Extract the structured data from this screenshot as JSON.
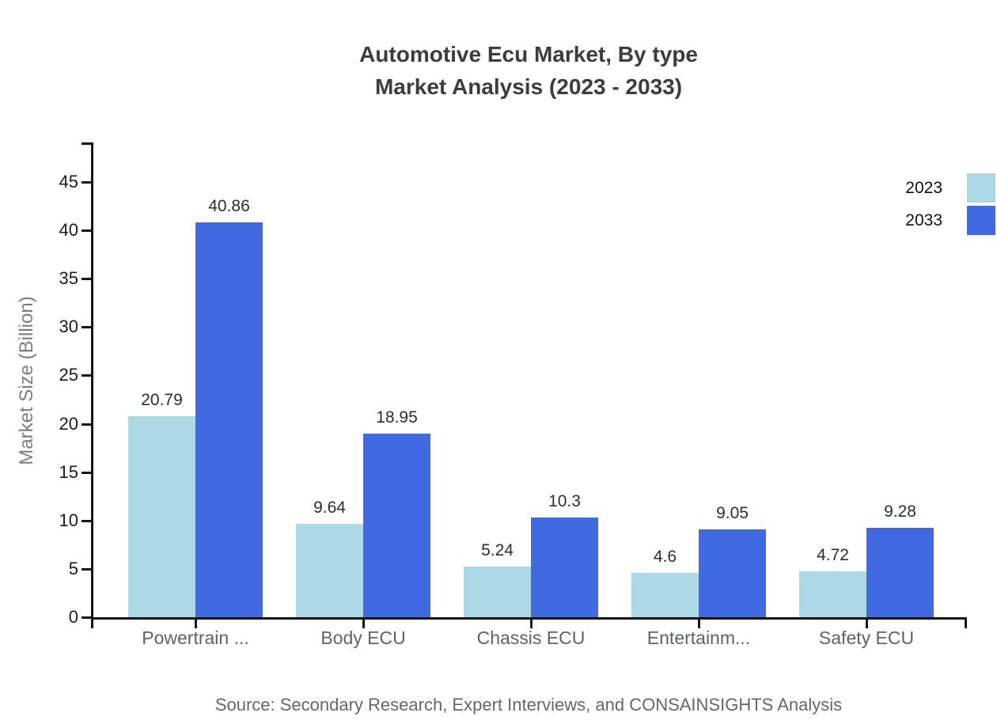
{
  "title": {
    "line1": "Automotive Ecu Market, By type",
    "line2": "Market Analysis (2023 - 2033)"
  },
  "source": "Source: Secondary Research, Expert Interviews, and CONSAINSIGHTS Analysis",
  "colors": {
    "series_2023": "#ADD8E6",
    "series_2033": "#4169E1",
    "axis": "#151515",
    "title_text": "#3c3c3c",
    "category_text": "#5f6368",
    "value_text": "#2d2d2d",
    "muted_text": "#666666"
  },
  "chart_data": {
    "type": "bar",
    "title": "Automotive Ecu Market, By type — Market Analysis (2023 - 2033)",
    "categories": [
      "Powertrain ...",
      "Body ECU",
      "Chassis ECU",
      "Entertainm...",
      "Safety ECU"
    ],
    "series": [
      {
        "name": "2023",
        "color": "#ADD8E6",
        "values": [
          20.79,
          9.64,
          5.24,
          4.6,
          4.72
        ]
      },
      {
        "name": "2033",
        "color": "#4169E1",
        "values": [
          40.86,
          18.95,
          10.3,
          9.05,
          9.28
        ]
      }
    ],
    "xlabel": "",
    "ylabel": "Market Size (Billion)",
    "ylim": [
      0,
      49
    ],
    "yticks": [
      0,
      5,
      10,
      15,
      20,
      25,
      30,
      35,
      40,
      45
    ],
    "grid": false,
    "value_labels": true,
    "legend_position": "top-right"
  }
}
